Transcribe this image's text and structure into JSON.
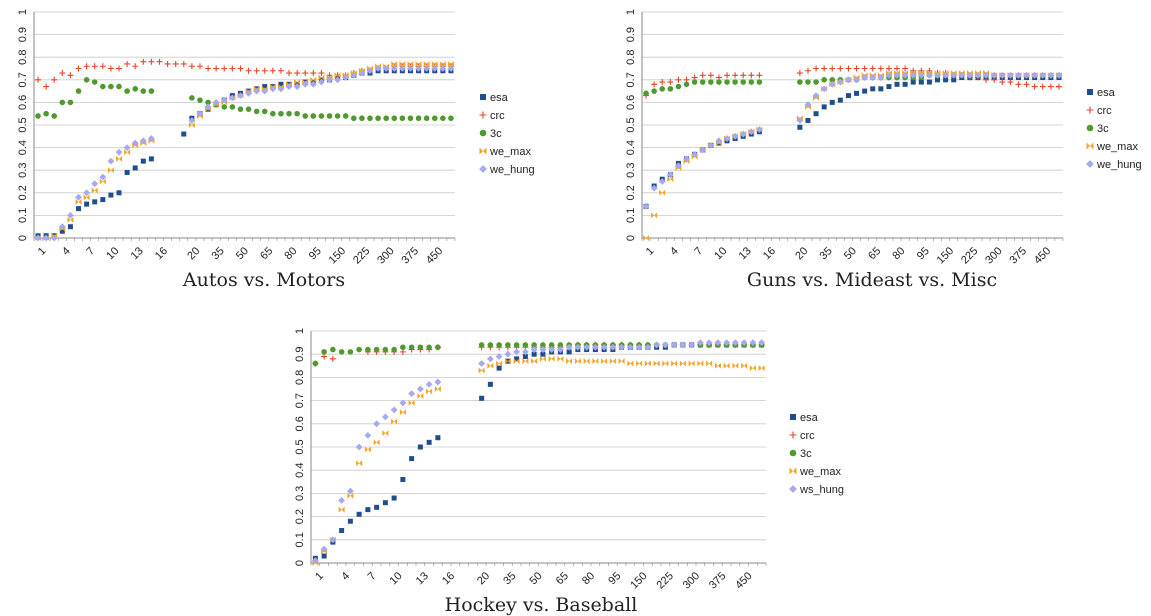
{
  "chart_data": [
    {
      "type": "scatter",
      "title": "Autos vs. Motors",
      "categories": [
        "1",
        "2",
        "3",
        "4",
        "5",
        "6",
        "7",
        "8",
        "9",
        "10",
        "11",
        "12",
        "13",
        "14",
        "15",
        "16",
        "17",
        "18",
        "19",
        "20",
        "25",
        "30",
        "35",
        "40",
        "45",
        "50",
        "55",
        "60",
        "65",
        "70",
        "75",
        "80",
        "85",
        "90",
        "95",
        "100",
        "125",
        "150",
        "175",
        "200",
        "225",
        "250",
        "275",
        "300",
        "325",
        "350",
        "375",
        "400",
        "425",
        "450",
        "475",
        "500"
      ],
      "tick_labels": [
        "1",
        "4",
        "7",
        "10",
        "13",
        "16",
        "20",
        "35",
        "50",
        "65",
        "80",
        "95",
        "150",
        "225",
        "300",
        "375",
        "450"
      ],
      "ylim": [
        0,
        1
      ],
      "yticks": [
        0,
        0.1,
        0.2,
        0.3,
        0.4,
        0.5,
        0.6,
        0.7,
        0.8,
        0.9,
        1
      ],
      "legend": "right",
      "grid": true,
      "series": [
        {
          "name": "esa",
          "values": [
            0.01,
            0.01,
            0.01,
            0.03,
            0.05,
            0.13,
            0.15,
            0.16,
            0.17,
            0.19,
            0.2,
            0.29,
            0.31,
            0.34,
            0.35,
            null,
            null,
            null,
            0.46,
            0.53,
            0.55,
            0.57,
            0.59,
            0.61,
            0.63,
            0.64,
            0.65,
            0.66,
            0.67,
            0.67,
            0.68,
            0.68,
            0.68,
            0.69,
            0.69,
            0.7,
            0.7,
            0.71,
            0.71,
            0.72,
            0.73,
            0.73,
            0.74,
            0.74,
            0.74,
            0.74,
            0.74,
            0.74,
            0.74,
            0.74,
            0.74,
            0.74
          ]
        },
        {
          "name": "crc",
          "values": [
            0.7,
            0.67,
            0.7,
            0.73,
            0.72,
            0.75,
            0.76,
            0.76,
            0.76,
            0.75,
            0.75,
            0.77,
            0.76,
            0.78,
            0.78,
            0.78,
            0.77,
            0.77,
            0.77,
            0.76,
            0.76,
            0.75,
            0.75,
            0.75,
            0.75,
            0.75,
            0.74,
            0.74,
            0.74,
            0.74,
            0.74,
            0.73,
            0.73,
            0.73,
            0.73,
            0.73,
            0.72,
            0.72,
            0.72,
            0.73,
            0.74,
            0.74,
            0.75,
            0.75,
            0.76,
            0.76,
            0.76,
            0.76,
            0.76,
            0.76,
            0.76,
            0.76
          ]
        },
        {
          "name": "3c",
          "values": [
            0.54,
            0.55,
            0.54,
            0.6,
            0.6,
            0.65,
            0.7,
            0.69,
            0.67,
            0.67,
            0.67,
            0.65,
            0.66,
            0.65,
            0.65,
            null,
            null,
            null,
            null,
            0.62,
            0.61,
            0.6,
            0.59,
            0.58,
            0.58,
            0.57,
            0.57,
            0.56,
            0.56,
            0.55,
            0.55,
            0.55,
            0.55,
            0.54,
            0.54,
            0.54,
            0.54,
            0.54,
            0.54,
            0.53,
            0.53,
            0.53,
            0.53,
            0.53,
            0.53,
            0.53,
            0.53,
            0.53,
            0.53,
            0.53,
            0.53,
            0.53
          ]
        },
        {
          "name": "we_max",
          "values": [
            0,
            0,
            0.01,
            0.04,
            0.08,
            0.16,
            0.18,
            0.21,
            0.25,
            0.3,
            0.35,
            0.38,
            0.41,
            0.42,
            0.43,
            null,
            null,
            null,
            null,
            0.5,
            0.54,
            0.57,
            0.59,
            0.6,
            0.62,
            0.63,
            0.65,
            0.66,
            0.66,
            0.67,
            0.67,
            0.68,
            0.69,
            0.69,
            0.7,
            0.71,
            0.71,
            0.72,
            0.72,
            0.73,
            0.74,
            0.75,
            0.76,
            0.76,
            0.77,
            0.77,
            0.77,
            0.77,
            0.77,
            0.77,
            0.77,
            0.77
          ]
        },
        {
          "name": "we_hung",
          "values": [
            0,
            0,
            0,
            0.05,
            0.1,
            0.18,
            0.2,
            0.24,
            0.27,
            0.34,
            0.38,
            0.4,
            0.42,
            0.43,
            0.44,
            null,
            null,
            null,
            null,
            0.52,
            0.55,
            0.58,
            0.6,
            0.61,
            0.62,
            0.63,
            0.64,
            0.65,
            0.65,
            0.66,
            0.66,
            0.67,
            0.67,
            0.68,
            0.68,
            0.69,
            0.7,
            0.7,
            0.71,
            0.72,
            0.73,
            0.74,
            0.75,
            0.75,
            0.75,
            0.75,
            0.75,
            0.75,
            0.75,
            0.75,
            0.75,
            0.75
          ]
        }
      ]
    },
    {
      "type": "scatter",
      "title": "Guns vs. Mideast vs. Misc",
      "categories": [
        "1",
        "2",
        "3",
        "4",
        "5",
        "6",
        "7",
        "8",
        "9",
        "10",
        "11",
        "12",
        "13",
        "14",
        "15",
        "16",
        "17",
        "18",
        "19",
        "20",
        "25",
        "30",
        "35",
        "40",
        "45",
        "50",
        "55",
        "60",
        "65",
        "70",
        "75",
        "80",
        "85",
        "90",
        "95",
        "100",
        "125",
        "150",
        "175",
        "200",
        "225",
        "250",
        "275",
        "300",
        "325",
        "350",
        "375",
        "400",
        "425",
        "450",
        "475",
        "500"
      ],
      "tick_labels": [
        "1",
        "4",
        "7",
        "10",
        "13",
        "16",
        "20",
        "35",
        "50",
        "65",
        "80",
        "95",
        "150",
        "225",
        "300",
        "375",
        "450"
      ],
      "ylim": [
        0,
        1
      ],
      "yticks": [
        0,
        0.1,
        0.2,
        0.3,
        0.4,
        0.5,
        0.6,
        0.7,
        0.8,
        0.9,
        1
      ],
      "legend": "right",
      "grid": true,
      "series": [
        {
          "name": "esa",
          "values": [
            0.14,
            0.23,
            0.26,
            0.28,
            0.33,
            0.35,
            0.37,
            0.39,
            0.41,
            0.42,
            0.43,
            0.44,
            0.45,
            0.46,
            0.47,
            null,
            null,
            null,
            null,
            0.49,
            0.52,
            0.55,
            0.58,
            0.6,
            0.61,
            0.63,
            0.64,
            0.65,
            0.66,
            0.66,
            0.67,
            0.68,
            0.68,
            0.69,
            0.69,
            0.69,
            0.7,
            0.7,
            0.7,
            0.71,
            0.71,
            0.71,
            0.71,
            0.71,
            0.71,
            0.71,
            0.71,
            0.71,
            0.71,
            0.71,
            0.71,
            0.71
          ]
        },
        {
          "name": "crc",
          "values": [
            0.63,
            0.68,
            0.69,
            0.69,
            0.7,
            0.7,
            0.71,
            0.72,
            0.72,
            0.71,
            0.72,
            0.72,
            0.72,
            0.72,
            0.72,
            null,
            null,
            null,
            null,
            0.73,
            0.74,
            0.75,
            0.75,
            0.75,
            0.75,
            0.75,
            0.75,
            0.75,
            0.75,
            0.75,
            0.75,
            0.75,
            0.75,
            0.74,
            0.74,
            0.74,
            0.73,
            0.73,
            0.72,
            0.72,
            0.71,
            0.71,
            0.7,
            0.7,
            0.69,
            0.69,
            0.68,
            0.68,
            0.67,
            0.67,
            0.67,
            0.67
          ]
        },
        {
          "name": "3c",
          "values": [
            0.64,
            0.65,
            0.66,
            0.66,
            0.67,
            0.68,
            0.69,
            0.69,
            0.69,
            0.69,
            0.69,
            0.69,
            0.69,
            0.69,
            0.69,
            null,
            null,
            null,
            null,
            0.69,
            0.69,
            0.69,
            0.7,
            0.7,
            0.7,
            0.7,
            0.7,
            0.71,
            0.71,
            0.71,
            0.71,
            0.71,
            0.71,
            0.71,
            0.71,
            0.72,
            0.72,
            0.72,
            0.72,
            0.72,
            0.72,
            0.72,
            0.72,
            0.72,
            0.72,
            0.72,
            0.72,
            0.72,
            0.72,
            0.72,
            0.72,
            0.72
          ]
        },
        {
          "name": "we_max",
          "values": [
            0,
            0.1,
            0.2,
            0.26,
            0.31,
            0.34,
            0.36,
            0.39,
            0.41,
            0.42,
            0.44,
            0.45,
            0.46,
            0.47,
            0.48,
            null,
            null,
            null,
            null,
            0.53,
            0.58,
            0.62,
            0.66,
            0.68,
            0.69,
            0.7,
            0.71,
            0.72,
            0.72,
            0.72,
            0.73,
            0.73,
            0.73,
            0.73,
            0.73,
            0.73,
            0.73,
            0.73,
            0.73,
            0.73,
            0.73,
            0.73,
            0.73,
            0.72,
            0.72,
            0.72,
            0.72,
            0.72,
            0.72,
            0.72,
            0.72,
            0.72
          ]
        },
        {
          "name": "we_hung",
          "values": [
            0.14,
            0.22,
            0.25,
            0.28,
            0.32,
            0.35,
            0.37,
            0.39,
            0.41,
            0.43,
            0.44,
            0.45,
            0.46,
            0.47,
            0.48,
            null,
            null,
            null,
            null,
            0.52,
            0.59,
            0.63,
            0.66,
            0.68,
            0.69,
            0.7,
            0.7,
            0.71,
            0.71,
            0.71,
            0.72,
            0.72,
            0.72,
            0.72,
            0.72,
            0.72,
            0.72,
            0.72,
            0.72,
            0.72,
            0.72,
            0.72,
            0.72,
            0.72,
            0.72,
            0.72,
            0.72,
            0.72,
            0.72,
            0.72,
            0.72,
            0.72
          ]
        }
      ]
    },
    {
      "type": "scatter",
      "title": "Hockey vs. Baseball",
      "categories": [
        "1",
        "2",
        "3",
        "4",
        "5",
        "6",
        "7",
        "8",
        "9",
        "10",
        "11",
        "12",
        "13",
        "14",
        "15",
        "16",
        "17",
        "18",
        "19",
        "20",
        "25",
        "30",
        "35",
        "40",
        "45",
        "50",
        "55",
        "60",
        "65",
        "70",
        "75",
        "80",
        "85",
        "90",
        "95",
        "100",
        "125",
        "150",
        "175",
        "200",
        "225",
        "250",
        "275",
        "300",
        "325",
        "350",
        "375",
        "400",
        "425",
        "450",
        "475",
        "500"
      ],
      "tick_labels": [
        "1",
        "4",
        "7",
        "10",
        "13",
        "16",
        "20",
        "35",
        "50",
        "65",
        "80",
        "95",
        "150",
        "225",
        "300",
        "375",
        "450"
      ],
      "ylim": [
        0,
        1
      ],
      "yticks": [
        0,
        0.1,
        0.2,
        0.3,
        0.4,
        0.5,
        0.6,
        0.7,
        0.8,
        0.9,
        1
      ],
      "legend": "right",
      "grid": true,
      "series": [
        {
          "name": "esa",
          "values": [
            0.02,
            0.03,
            0.09,
            0.14,
            0.18,
            0.21,
            0.23,
            0.24,
            0.26,
            0.28,
            0.36,
            0.45,
            0.5,
            0.52,
            0.54,
            null,
            null,
            null,
            null,
            0.71,
            0.77,
            0.84,
            0.87,
            0.88,
            0.89,
            0.9,
            0.9,
            0.91,
            0.91,
            0.91,
            0.92,
            0.92,
            0.92,
            0.92,
            0.92,
            0.93,
            0.93,
            0.93,
            0.93,
            0.93,
            0.93,
            0.94,
            0.94,
            0.94,
            0.94,
            0.94,
            0.94,
            0.94,
            0.94,
            0.94,
            0.94,
            0.94
          ]
        },
        {
          "name": "crc",
          "values": [
            0.86,
            0.89,
            0.88,
            null,
            null,
            null,
            0.91,
            0.91,
            0.91,
            0.91,
            0.91,
            0.92,
            0.92,
            0.92,
            0.93,
            null,
            null,
            null,
            null,
            0.93,
            0.93,
            0.93,
            0.93,
            0.93,
            0.93,
            0.93,
            0.93,
            0.93,
            0.93,
            0.93,
            0.94,
            0.94,
            0.94,
            0.94,
            0.94,
            0.94,
            0.94,
            0.94,
            0.94,
            0.94,
            0.94,
            0.94,
            0.94,
            0.94,
            0.94,
            0.94,
            0.94,
            0.94,
            0.94,
            0.94,
            0.94,
            0.94
          ]
        },
        {
          "name": "3c",
          "values": [
            0.86,
            0.91,
            0.92,
            0.91,
            0.91,
            0.92,
            0.92,
            0.92,
            0.92,
            0.92,
            0.93,
            0.93,
            0.93,
            0.93,
            0.93,
            null,
            null,
            null,
            null,
            0.94,
            0.94,
            0.94,
            0.94,
            0.94,
            0.94,
            0.94,
            0.94,
            0.94,
            0.94,
            0.94,
            0.94,
            0.94,
            0.94,
            0.94,
            0.94,
            0.94,
            0.94,
            0.94,
            0.94,
            0.94,
            0.94,
            0.94,
            0.94,
            0.94,
            0.94,
            0.94,
            0.94,
            0.94,
            0.94,
            0.94,
            0.94,
            0.94
          ]
        },
        {
          "name": "we_max",
          "values": [
            0,
            0.05,
            0.1,
            0.23,
            0.29,
            0.43,
            0.49,
            0.52,
            0.56,
            0.61,
            0.65,
            0.69,
            0.72,
            0.74,
            0.75,
            null,
            null,
            null,
            null,
            0.83,
            0.85,
            0.86,
            0.87,
            0.87,
            0.87,
            0.87,
            0.88,
            0.88,
            0.88,
            0.87,
            0.87,
            0.87,
            0.87,
            0.87,
            0.87,
            0.87,
            0.86,
            0.86,
            0.86,
            0.86,
            0.86,
            0.86,
            0.86,
            0.86,
            0.86,
            0.86,
            0.85,
            0.85,
            0.85,
            0.85,
            0.84,
            0.84
          ]
        },
        {
          "name": "ws_hung",
          "values": [
            0.01,
            0.06,
            0.1,
            0.27,
            0.31,
            0.5,
            0.55,
            0.6,
            0.63,
            0.66,
            0.69,
            0.73,
            0.75,
            0.77,
            0.78,
            null,
            null,
            null,
            null,
            0.86,
            0.88,
            0.89,
            0.9,
            0.91,
            0.91,
            0.92,
            0.92,
            0.92,
            0.92,
            0.93,
            0.93,
            0.93,
            0.93,
            0.93,
            0.93,
            0.93,
            0.93,
            0.93,
            0.93,
            0.94,
            0.94,
            0.94,
            0.94,
            0.94,
            0.95,
            0.95,
            0.95,
            0.95,
            0.95,
            0.95,
            0.95,
            0.95
          ]
        }
      ]
    }
  ],
  "colors": {
    "esa": "#1f4e8c",
    "crc": "#e8442a",
    "3c": "#4f9a2e",
    "we_max": "#f4a324",
    "hung": "#a6a8f0",
    "grid": "#c9c9c9",
    "axis": "#888888"
  },
  "markers": {
    "esa": "square",
    "crc": "plus",
    "3c": "circle",
    "we_max": "bowtie",
    "we_hung": "diamond",
    "ws_hung": "diamond"
  }
}
